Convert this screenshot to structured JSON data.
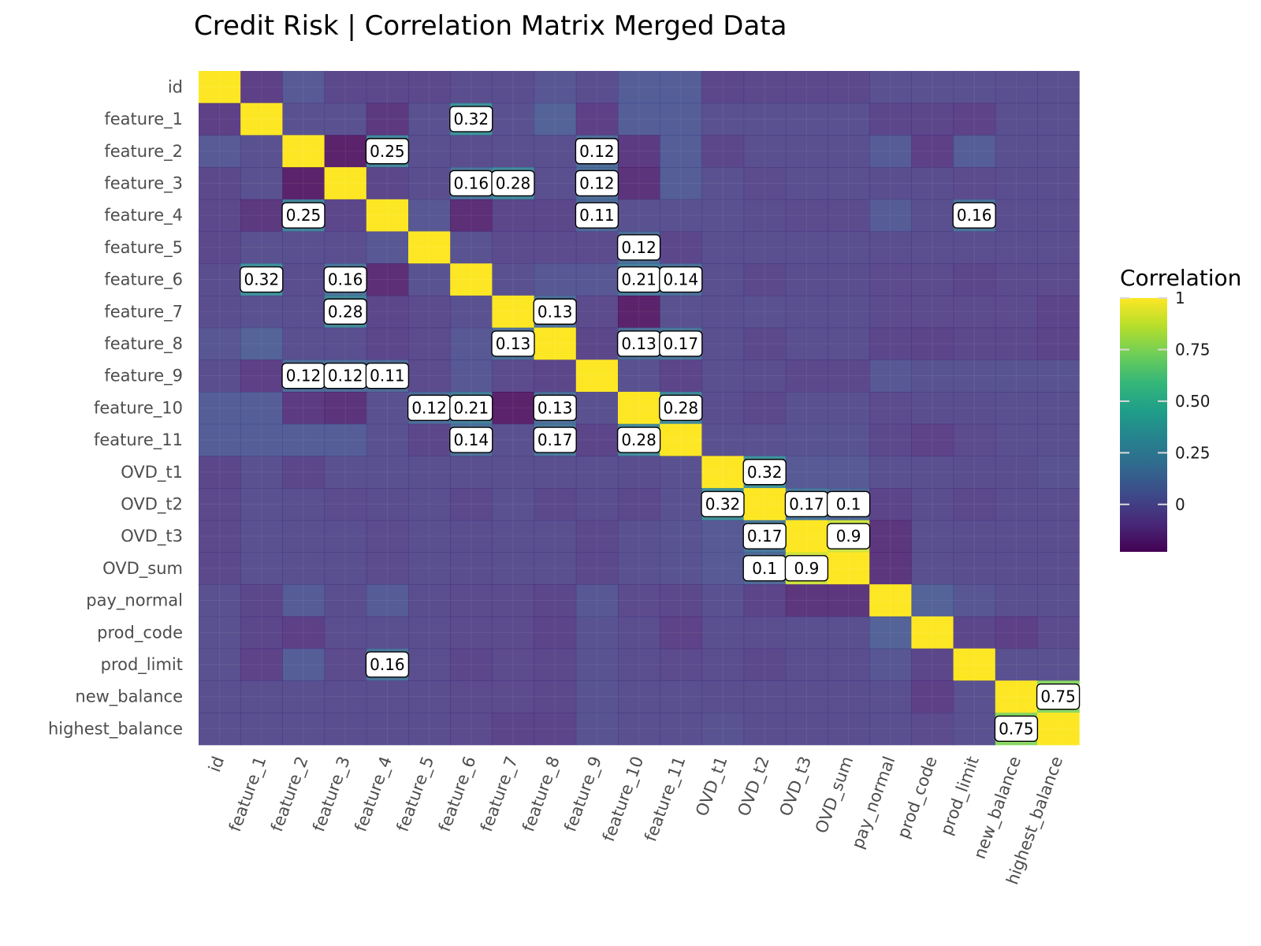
{
  "chart_data": {
    "type": "heatmap",
    "title": "Credit Risk | Correlation Matrix Merged Data",
    "xlabel": "",
    "ylabel": "",
    "variables": [
      "id",
      "feature_1",
      "feature_2",
      "feature_3",
      "feature_4",
      "feature_5",
      "feature_6",
      "feature_7",
      "feature_8",
      "feature_9",
      "feature_10",
      "feature_11",
      "OVD_t1",
      "OVD_t2",
      "OVD_t3",
      "OVD_sum",
      "pay_normal",
      "prod_code",
      "prod_limit",
      "new_balance",
      "highest_balance"
    ],
    "matrix": [
      [
        1.0,
        -0.1,
        0.02,
        -0.06,
        -0.06,
        -0.06,
        -0.04,
        -0.04,
        0.0,
        -0.04,
        0.04,
        0.04,
        -0.07,
        -0.06,
        -0.06,
        -0.06,
        -0.02,
        -0.02,
        -0.02,
        -0.03,
        -0.03
      ],
      [
        -0.1,
        1.0,
        -0.02,
        -0.02,
        -0.13,
        -0.02,
        0.32,
        -0.02,
        0.06,
        -0.1,
        0.04,
        0.04,
        -0.02,
        -0.02,
        -0.02,
        -0.02,
        -0.07,
        -0.07,
        -0.09,
        -0.03,
        -0.03
      ],
      [
        0.02,
        -0.02,
        1.0,
        -0.22,
        0.25,
        -0.03,
        -0.04,
        -0.03,
        -0.03,
        0.12,
        -0.12,
        0.04,
        -0.07,
        -0.03,
        -0.03,
        -0.03,
        0.03,
        -0.1,
        0.04,
        -0.03,
        -0.03
      ],
      [
        -0.06,
        -0.02,
        -0.22,
        1.0,
        -0.07,
        -0.04,
        0.16,
        0.28,
        -0.03,
        0.12,
        -0.15,
        0.04,
        -0.02,
        -0.05,
        -0.03,
        -0.03,
        -0.04,
        -0.04,
        -0.05,
        -0.04,
        -0.04
      ],
      [
        -0.06,
        -0.13,
        0.25,
        -0.07,
        1.0,
        0.01,
        -0.17,
        -0.07,
        -0.07,
        0.11,
        -0.02,
        -0.02,
        -0.02,
        -0.04,
        -0.05,
        -0.05,
        0.03,
        -0.03,
        0.16,
        -0.04,
        -0.04
      ],
      [
        -0.06,
        -0.02,
        -0.03,
        -0.04,
        0.01,
        1.0,
        -0.01,
        -0.05,
        -0.05,
        -0.05,
        0.12,
        -0.07,
        -0.03,
        -0.03,
        -0.03,
        -0.03,
        -0.04,
        -0.04,
        -0.04,
        -0.04,
        -0.04
      ],
      [
        -0.04,
        0.32,
        -0.04,
        0.16,
        -0.17,
        -0.01,
        1.0,
        -0.02,
        0.01,
        0.01,
        0.21,
        0.14,
        -0.03,
        -0.06,
        -0.04,
        -0.04,
        -0.05,
        -0.05,
        -0.07,
        -0.05,
        -0.05
      ],
      [
        -0.04,
        -0.02,
        -0.03,
        0.28,
        -0.07,
        -0.05,
        -0.02,
        1.0,
        0.13,
        -0.05,
        -0.22,
        -0.02,
        -0.03,
        -0.02,
        -0.03,
        -0.03,
        -0.05,
        -0.05,
        -0.05,
        -0.05,
        -0.08
      ],
      [
        0.0,
        0.06,
        -0.03,
        -0.03,
        -0.07,
        -0.05,
        0.01,
        0.13,
        1.0,
        -0.07,
        0.13,
        0.17,
        -0.03,
        -0.06,
        -0.03,
        -0.03,
        -0.07,
        -0.08,
        -0.06,
        -0.06,
        -0.08
      ],
      [
        -0.04,
        -0.1,
        0.12,
        0.12,
        0.11,
        -0.05,
        0.01,
        -0.05,
        -0.07,
        1.0,
        -0.02,
        -0.08,
        -0.03,
        -0.04,
        -0.06,
        -0.06,
        0.01,
        -0.01,
        -0.01,
        -0.01,
        -0.01
      ],
      [
        0.04,
        0.04,
        -0.12,
        -0.15,
        -0.02,
        0.12,
        0.21,
        -0.22,
        0.13,
        -0.02,
        1.0,
        0.28,
        -0.04,
        -0.06,
        -0.02,
        -0.02,
        -0.05,
        -0.04,
        -0.04,
        -0.03,
        -0.03
      ],
      [
        0.04,
        0.04,
        0.04,
        0.04,
        -0.02,
        -0.07,
        0.14,
        -0.02,
        0.17,
        -0.08,
        0.28,
        1.0,
        -0.02,
        -0.02,
        -0.01,
        -0.01,
        -0.06,
        -0.09,
        -0.05,
        -0.03,
        -0.03
      ],
      [
        -0.07,
        -0.02,
        -0.07,
        -0.02,
        -0.02,
        -0.03,
        -0.03,
        -0.03,
        -0.03,
        -0.03,
        -0.04,
        -0.02,
        1.0,
        0.32,
        0.02,
        0.02,
        -0.02,
        -0.03,
        -0.04,
        -0.04,
        -0.01
      ],
      [
        -0.06,
        -0.02,
        -0.03,
        -0.05,
        -0.04,
        -0.03,
        -0.06,
        -0.02,
        -0.06,
        -0.04,
        -0.06,
        -0.02,
        0.32,
        1.0,
        0.17,
        0.1,
        -0.08,
        -0.04,
        -0.06,
        -0.04,
        -0.04
      ],
      [
        -0.06,
        -0.02,
        -0.03,
        -0.03,
        -0.05,
        -0.03,
        -0.04,
        -0.03,
        -0.03,
        -0.06,
        -0.02,
        -0.01,
        0.02,
        0.17,
        1.0,
        0.9,
        -0.14,
        -0.03,
        -0.04,
        -0.04,
        -0.04
      ],
      [
        -0.06,
        -0.02,
        -0.03,
        -0.03,
        -0.05,
        -0.03,
        -0.04,
        -0.03,
        -0.03,
        -0.06,
        -0.02,
        -0.01,
        0.02,
        0.1,
        0.9,
        1.0,
        -0.14,
        -0.03,
        -0.04,
        -0.04,
        -0.04
      ],
      [
        -0.02,
        -0.07,
        0.03,
        -0.04,
        0.03,
        -0.04,
        -0.05,
        -0.05,
        -0.07,
        0.01,
        -0.05,
        -0.06,
        -0.02,
        -0.08,
        -0.14,
        -0.14,
        1.0,
        0.06,
        0.0,
        -0.03,
        -0.03
      ],
      [
        -0.02,
        -0.07,
        -0.1,
        -0.04,
        -0.03,
        -0.04,
        -0.05,
        -0.05,
        -0.08,
        -0.01,
        -0.04,
        -0.09,
        -0.03,
        -0.04,
        -0.03,
        -0.03,
        0.06,
        1.0,
        -0.07,
        -0.1,
        -0.05
      ],
      [
        -0.02,
        -0.09,
        0.04,
        -0.05,
        0.16,
        -0.04,
        -0.07,
        -0.05,
        -0.06,
        -0.01,
        -0.04,
        -0.05,
        -0.04,
        -0.06,
        -0.04,
        -0.04,
        0.0,
        -0.07,
        1.0,
        -0.02,
        -0.02
      ],
      [
        -0.03,
        -0.03,
        -0.03,
        -0.04,
        -0.04,
        -0.04,
        -0.05,
        -0.05,
        -0.06,
        -0.01,
        -0.03,
        -0.03,
        -0.04,
        -0.04,
        -0.04,
        -0.04,
        -0.03,
        -0.1,
        -0.02,
        1.0,
        0.75
      ],
      [
        -0.03,
        -0.03,
        -0.03,
        -0.04,
        -0.04,
        -0.04,
        -0.05,
        -0.08,
        -0.08,
        -0.01,
        -0.03,
        -0.03,
        -0.01,
        -0.04,
        -0.04,
        -0.04,
        -0.03,
        -0.05,
        -0.02,
        0.75,
        1.0
      ]
    ],
    "labeled_cells": [
      {
        "row": 1,
        "col": 6,
        "text": "0.32"
      },
      {
        "row": 2,
        "col": 4,
        "text": "0.25"
      },
      {
        "row": 2,
        "col": 9,
        "text": "0.12"
      },
      {
        "row": 3,
        "col": 6,
        "text": "0.16"
      },
      {
        "row": 3,
        "col": 7,
        "text": "0.28"
      },
      {
        "row": 3,
        "col": 9,
        "text": "0.12"
      },
      {
        "row": 4,
        "col": 2,
        "text": "0.25"
      },
      {
        "row": 4,
        "col": 9,
        "text": "0.11"
      },
      {
        "row": 4,
        "col": 18,
        "text": "0.16"
      },
      {
        "row": 5,
        "col": 10,
        "text": "0.12"
      },
      {
        "row": 6,
        "col": 1,
        "text": "0.32"
      },
      {
        "row": 6,
        "col": 3,
        "text": "0.16"
      },
      {
        "row": 6,
        "col": 10,
        "text": "0.21"
      },
      {
        "row": 6,
        "col": 11,
        "text": "0.14"
      },
      {
        "row": 7,
        "col": 3,
        "text": "0.28"
      },
      {
        "row": 7,
        "col": 8,
        "text": "0.13"
      },
      {
        "row": 8,
        "col": 7,
        "text": "0.13"
      },
      {
        "row": 8,
        "col": 10,
        "text": "0.13"
      },
      {
        "row": 8,
        "col": 11,
        "text": "0.17"
      },
      {
        "row": 9,
        "col": 2,
        "text": "0.12"
      },
      {
        "row": 9,
        "col": 3,
        "text": "0.12"
      },
      {
        "row": 9,
        "col": 4,
        "text": "0.11"
      },
      {
        "row": 10,
        "col": 5,
        "text": "0.12"
      },
      {
        "row": 10,
        "col": 6,
        "text": "0.21"
      },
      {
        "row": 10,
        "col": 8,
        "text": "0.13"
      },
      {
        "row": 10,
        "col": 11,
        "text": "0.28"
      },
      {
        "row": 11,
        "col": 6,
        "text": "0.14"
      },
      {
        "row": 11,
        "col": 8,
        "text": "0.17"
      },
      {
        "row": 11,
        "col": 10,
        "text": "0.28"
      },
      {
        "row": 12,
        "col": 13,
        "text": "0.32"
      },
      {
        "row": 13,
        "col": 12,
        "text": "0.32"
      },
      {
        "row": 13,
        "col": 14,
        "text": "0.17"
      },
      {
        "row": 13,
        "col": 15,
        "text": "0.1"
      },
      {
        "row": 14,
        "col": 13,
        "text": "0.17"
      },
      {
        "row": 14,
        "col": 15,
        "text": "0.9"
      },
      {
        "row": 15,
        "col": 13,
        "text": "0.1"
      },
      {
        "row": 15,
        "col": 14,
        "text": "0.9"
      },
      {
        "row": 18,
        "col": 4,
        "text": "0.16"
      },
      {
        "row": 19,
        "col": 20,
        "text": "0.75"
      },
      {
        "row": 20,
        "col": 19,
        "text": "0.75"
      }
    ],
    "legend": {
      "title": "Correlation",
      "ticks": [
        {
          "value": 1,
          "label": "1"
        },
        {
          "value": 0.75,
          "label": "0.75"
        },
        {
          "value": 0.5,
          "label": "0.50"
        },
        {
          "value": 0.25,
          "label": "0.25"
        },
        {
          "value": 0,
          "label": "0"
        }
      ],
      "range": [
        -0.23,
        1.0
      ],
      "placement": "right",
      "colormap": "viridis"
    },
    "grid": true
  },
  "colors": {
    "background": "#ffffff",
    "grid": "#ebebeb",
    "tick_text": "#4d4d4d",
    "label_box_fill": "#ffffff",
    "label_box_border": "#000000",
    "viridis_stops": [
      "#440154",
      "#482878",
      "#3e4989",
      "#31688e",
      "#26828e",
      "#1f9e89",
      "#35b779",
      "#6ece58",
      "#b5de2b",
      "#fde725"
    ]
  }
}
